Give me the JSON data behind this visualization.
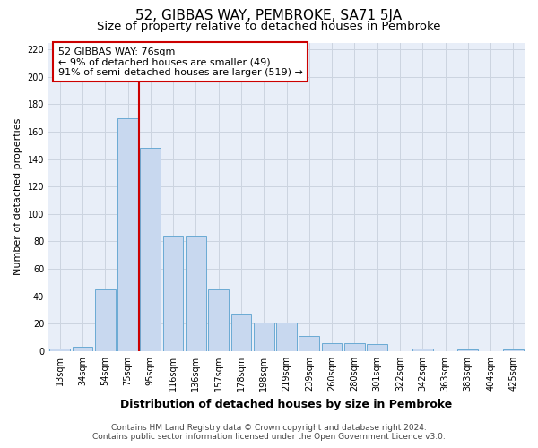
{
  "title": "52, GIBBAS WAY, PEMBROKE, SA71 5JA",
  "subtitle": "Size of property relative to detached houses in Pembroke",
  "xlabel": "Distribution of detached houses by size in Pembroke",
  "ylabel": "Number of detached properties",
  "footer_line1": "Contains HM Land Registry data © Crown copyright and database right 2024.",
  "footer_line2": "Contains public sector information licensed under the Open Government Licence v3.0.",
  "categories": [
    "13sqm",
    "34sqm",
    "54sqm",
    "75sqm",
    "95sqm",
    "116sqm",
    "136sqm",
    "157sqm",
    "178sqm",
    "198sqm",
    "219sqm",
    "239sqm",
    "260sqm",
    "280sqm",
    "301sqm",
    "322sqm",
    "342sqm",
    "363sqm",
    "383sqm",
    "404sqm",
    "425sqm"
  ],
  "values": [
    2,
    3,
    45,
    170,
    148,
    84,
    84,
    45,
    27,
    21,
    21,
    11,
    6,
    6,
    5,
    0,
    2,
    0,
    1,
    0,
    1
  ],
  "bar_color": "#c8d8ef",
  "bar_edge_color": "#6aaad4",
  "grid_color": "#ccd4e0",
  "background_color": "#e8eef8",
  "annotation_box_color": "#ffffff",
  "annotation_border_color": "#cc0000",
  "redline_color": "#cc0000",
  "redline_x": 3.5,
  "annotation_text_line1": "52 GIBBAS WAY: 76sqm",
  "annotation_text_line2": "← 9% of detached houses are smaller (49)",
  "annotation_text_line3": "91% of semi-detached houses are larger (519) →",
  "ylim": [
    0,
    225
  ],
  "yticks": [
    0,
    20,
    40,
    60,
    80,
    100,
    120,
    140,
    160,
    180,
    200,
    220
  ],
  "title_fontsize": 11,
  "subtitle_fontsize": 9.5,
  "annotation_fontsize": 8,
  "tick_fontsize": 7,
  "ylabel_fontsize": 8,
  "xlabel_fontsize": 9,
  "footer_fontsize": 6.5
}
